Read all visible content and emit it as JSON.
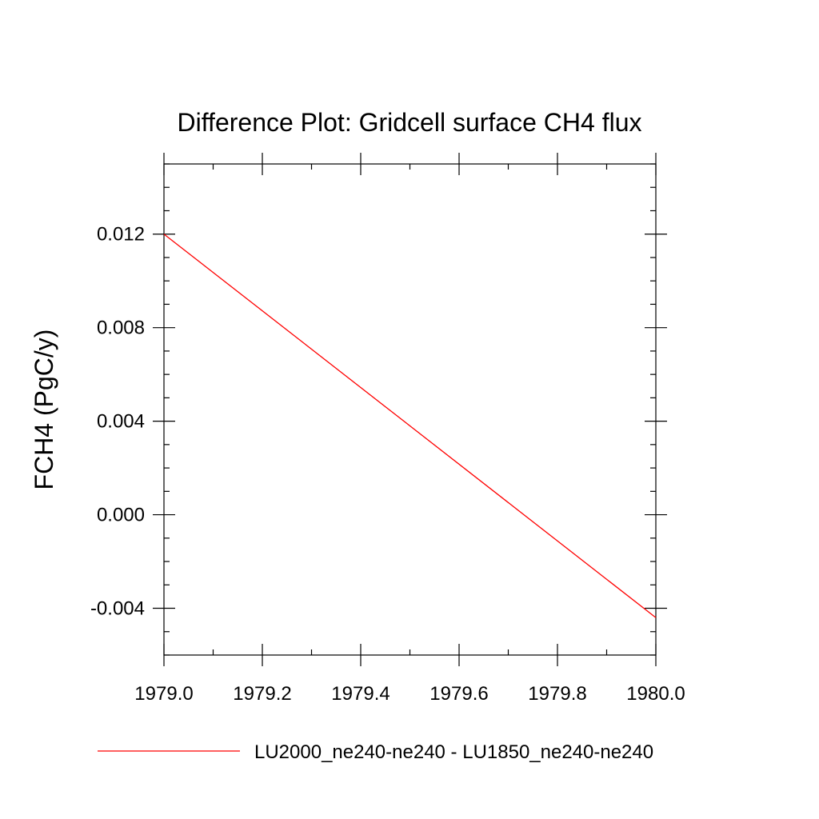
{
  "chart_data": {
    "type": "line",
    "title": "Difference Plot: Gridcell surface CH4 flux",
    "xlabel": "",
    "ylabel": "FCH4  (PgC/y)",
    "xlim": [
      1979.0,
      1980.0
    ],
    "ylim": [
      -0.006,
      0.015
    ],
    "x_ticks": [
      1979.0,
      1979.2,
      1979.4,
      1979.6,
      1979.8,
      1980.0
    ],
    "x_tick_labels": [
      "1979.0",
      "1979.2",
      "1979.4",
      "1979.6",
      "1979.8",
      "1980.0"
    ],
    "y_ticks": [
      -0.004,
      0.0,
      0.004,
      0.008,
      0.012
    ],
    "y_tick_labels": [
      "-0.004",
      "0.000",
      "0.004",
      "0.008",
      "0.012"
    ],
    "x_minor_step": 0.1,
    "y_minor_step": 0.001,
    "grid": false,
    "legend_position": "bottom",
    "series": [
      {
        "name": "LU2000_ne240-ne240 - LU1850_ne240-ne240",
        "color": "#ff0000",
        "x": [
          1979.0,
          1980.0
        ],
        "y": [
          0.012,
          -0.0044
        ]
      }
    ]
  }
}
